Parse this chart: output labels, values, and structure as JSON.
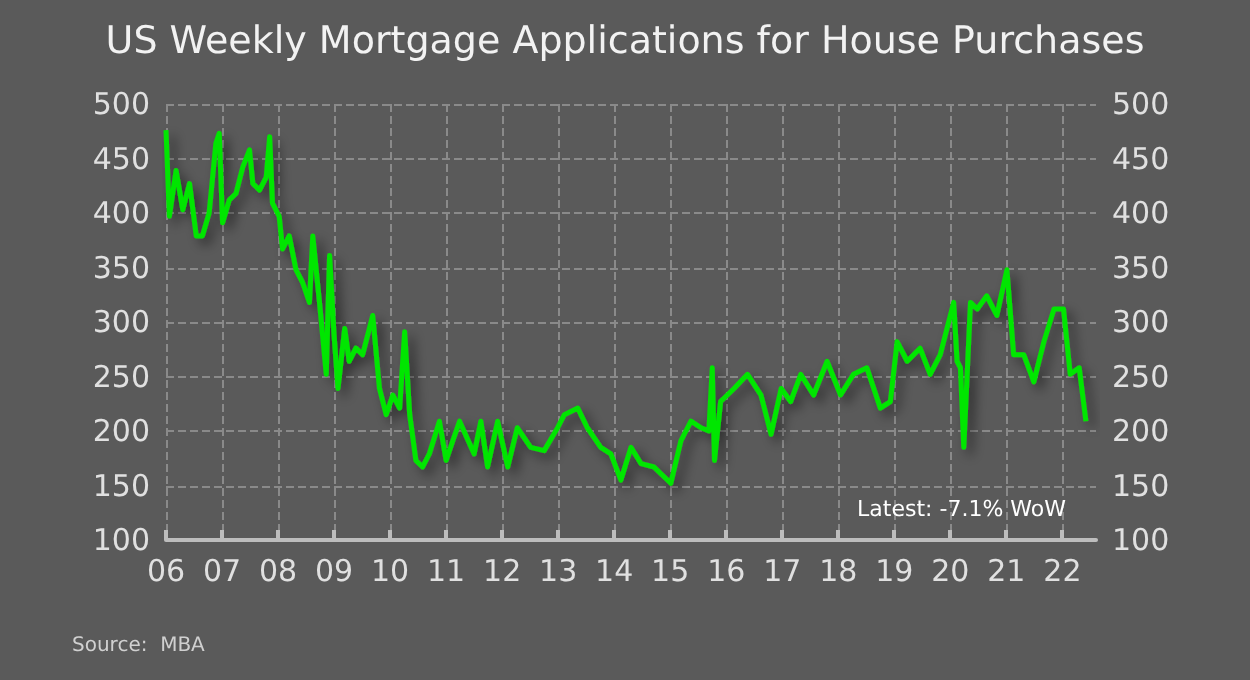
{
  "chart_data": {
    "type": "line",
    "title": "US Weekly Mortgage Applications for House Purchases",
    "annotations": [
      "Latest: -7.1% WoW",
      "Source:  MBA"
    ],
    "x": [
      2006.0,
      2006.06,
      2006.18,
      2006.3,
      2006.42,
      2006.54,
      2006.65,
      2006.77,
      2006.89,
      2006.95,
      2007.01,
      2007.13,
      2007.25,
      2007.37,
      2007.49,
      2007.55,
      2007.67,
      2007.79,
      2007.85,
      2007.9,
      2008.02,
      2008.08,
      2008.2,
      2008.32,
      2008.44,
      2008.56,
      2008.62,
      2008.74,
      2008.86,
      2008.92,
      2009.0,
      2009.07,
      2009.19,
      2009.27,
      2009.39,
      2009.51,
      2009.69,
      2009.81,
      2009.93,
      2010.05,
      2010.17,
      2010.26,
      2010.35,
      2010.46,
      2010.58,
      2010.7,
      2010.88,
      2011.0,
      2011.12,
      2011.24,
      2011.5,
      2011.62,
      2011.74,
      2011.92,
      2012.1,
      2012.27,
      2012.51,
      2012.75,
      2012.99,
      2013.11,
      2013.35,
      2013.52,
      2013.76,
      2013.94,
      2014.12,
      2014.3,
      2014.48,
      2014.71,
      2014.89,
      2015.01,
      2015.19,
      2015.37,
      2015.55,
      2015.69,
      2015.75,
      2015.79,
      2015.9,
      2016.14,
      2016.38,
      2016.62,
      2016.8,
      2016.98,
      2017.15,
      2017.33,
      2017.56,
      2017.8,
      2018.04,
      2018.27,
      2018.51,
      2018.75,
      2018.93,
      2019.05,
      2019.23,
      2019.46,
      2019.64,
      2019.82,
      2020.06,
      2020.12,
      2020.18,
      2020.24,
      2020.36,
      2020.48,
      2020.65,
      2020.83,
      2021.01,
      2021.13,
      2021.31,
      2021.49,
      2021.67,
      2021.85,
      2022.02,
      2022.14,
      2022.3,
      2022.42
    ],
    "series": [
      {
        "color": "#00e600",
        "values": [
          476,
          397,
          439,
          403,
          427,
          379,
          379,
          400,
          464,
          473,
          391,
          412,
          418,
          442,
          458,
          427,
          421,
          433,
          470,
          409,
          397,
          367,
          379,
          348,
          336,
          318,
          379,
          318,
          252,
          361,
          288,
          239,
          294,
          264,
          276,
          270,
          306,
          239,
          215,
          233,
          221,
          291,
          215,
          173,
          167,
          179,
          209,
          173,
          191,
          209,
          179,
          209,
          167,
          209,
          167,
          203,
          185,
          182,
          203,
          215,
          221,
          203,
          185,
          179,
          155,
          185,
          170,
          167,
          158,
          152,
          191,
          209,
          203,
          200,
          258,
          173,
          227,
          239,
          252,
          233,
          197,
          239,
          227,
          252,
          233,
          264,
          233,
          252,
          258,
          221,
          227,
          282,
          264,
          276,
          252,
          270,
          318,
          264,
          258,
          185,
          318,
          312,
          324,
          306,
          348,
          270,
          270,
          245,
          282,
          312,
          312,
          252,
          258,
          209
        ]
      }
    ],
    "xlim": [
      2006,
      2022.6
    ],
    "xticks": [
      {
        "value": 2006,
        "label": "06"
      },
      {
        "value": 2007,
        "label": "07"
      },
      {
        "value": 2008,
        "label": "08"
      },
      {
        "value": 2009,
        "label": "09"
      },
      {
        "value": 2010,
        "label": "10"
      },
      {
        "value": 2011,
        "label": "11"
      },
      {
        "value": 2012,
        "label": "12"
      },
      {
        "value": 2013,
        "label": "13"
      },
      {
        "value": 2014,
        "label": "14"
      },
      {
        "value": 2015,
        "label": "15"
      },
      {
        "value": 2016,
        "label": "16"
      },
      {
        "value": 2017,
        "label": "17"
      },
      {
        "value": 2018,
        "label": "18"
      },
      {
        "value": 2019,
        "label": "19"
      },
      {
        "value": 2020,
        "label": "20"
      },
      {
        "value": 2021,
        "label": "21"
      },
      {
        "value": 2022,
        "label": "22"
      }
    ],
    "ylim": [
      100,
      500
    ],
    "yticks": [
      100,
      150,
      200,
      250,
      300,
      350,
      400,
      450,
      500
    ],
    "y2lim": [
      100,
      500
    ],
    "y2ticks": [
      100,
      150,
      200,
      250,
      300,
      350,
      400,
      450,
      500
    ],
    "grid": true,
    "marker": "none",
    "line_style": "solid"
  }
}
